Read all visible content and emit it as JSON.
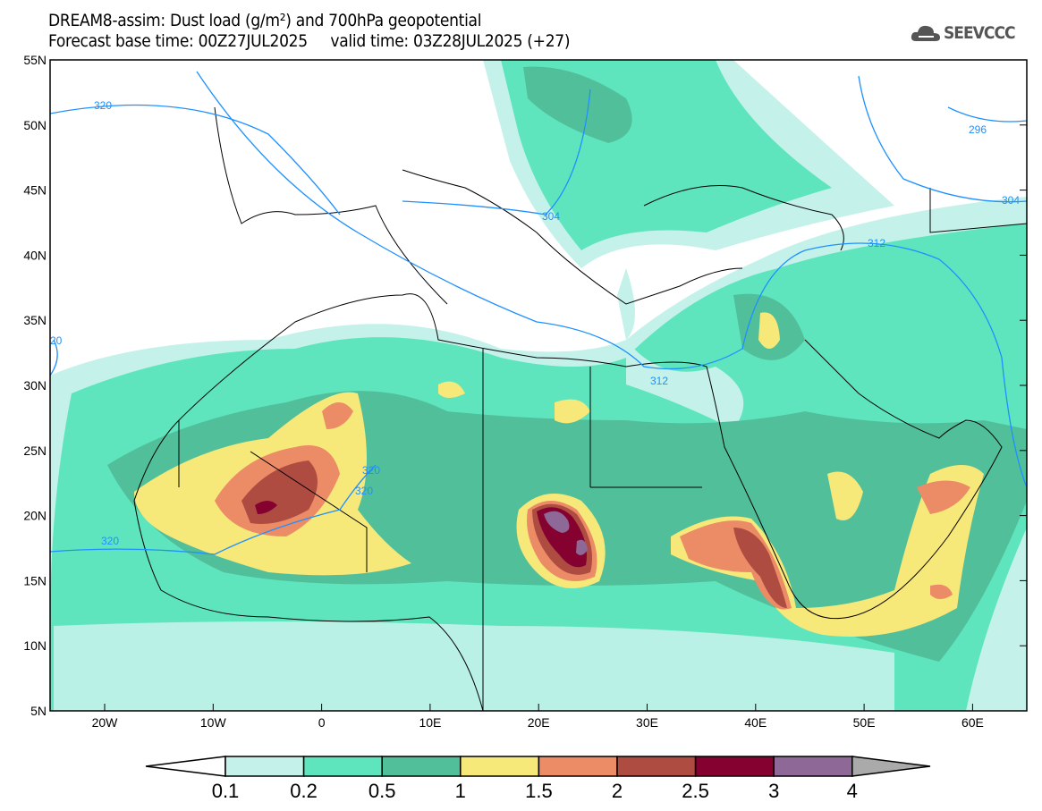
{
  "header": {
    "title_line1": "DREAM8-assim: Dust load (g/m²) and 700hPa geopotential",
    "title_line2": "Forecast base time: 00Z27JUL2025     valid time: 03Z28JUL2025 (+27)",
    "logo_text": "SEEVCCC",
    "logo_icon": "cloud-icon"
  },
  "map": {
    "lat_labels": [
      "55N",
      "50N",
      "45N",
      "40N",
      "35N",
      "30N",
      "25N",
      "20N",
      "15N",
      "10N",
      "5N"
    ],
    "lon_labels": [
      "20W",
      "10W",
      "0",
      "10E",
      "20E",
      "30E",
      "40E",
      "50E",
      "60E"
    ],
    "contour_labels": [
      "320",
      "320",
      "320",
      "320",
      "304",
      "312",
      "312",
      "296",
      "304",
      "20"
    ],
    "contour_color": "#1e90ff"
  },
  "colorbar": {
    "labels": [
      "0.1",
      "0.2",
      "0.5",
      "1",
      "1.5",
      "2",
      "2.5",
      "3",
      "4"
    ],
    "colors": [
      "#ffffff",
      "#c4f2ea",
      "#5fe5bd",
      "#52bf9b",
      "#f7e87a",
      "#ec8c67",
      "#af4c42",
      "#850230",
      "#8e6897",
      "#aaaaaa"
    ]
  }
}
